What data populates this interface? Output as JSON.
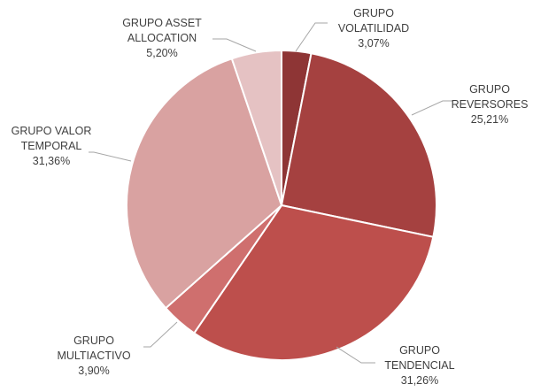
{
  "chart_data": {
    "type": "pie",
    "start_angle_deg": 0,
    "direction": "clockwise",
    "slices": [
      {
        "label": [
          "GRUPO",
          "VOLATILIDAD"
        ],
        "value_label": "3,07%",
        "value": 3.07,
        "color": "#8e3535"
      },
      {
        "label": [
          "GRUPO",
          "REVERSORES"
        ],
        "value_label": "25,21%",
        "value": 25.21,
        "color": "#a54140"
      },
      {
        "label": [
          "GRUPO",
          "TENDENCIAL"
        ],
        "value_label": "31,26%",
        "value": 31.26,
        "color": "#bd4f4c"
      },
      {
        "label": [
          "GRUPO",
          "MULTIACTIVO"
        ],
        "value_label": "3,90%",
        "value": 3.9,
        "color": "#cf6f6e"
      },
      {
        "label": [
          "GRUPO VALOR",
          "TEMPORAL"
        ],
        "value_label": "31,36%",
        "value": 31.36,
        "color": "#d9a2a1"
      },
      {
        "label": [
          "GRUPO ASSET",
          "ALLOCATION"
        ],
        "value_label": "5,20%",
        "value": 5.2,
        "color": "#e5c2c3"
      }
    ]
  }
}
